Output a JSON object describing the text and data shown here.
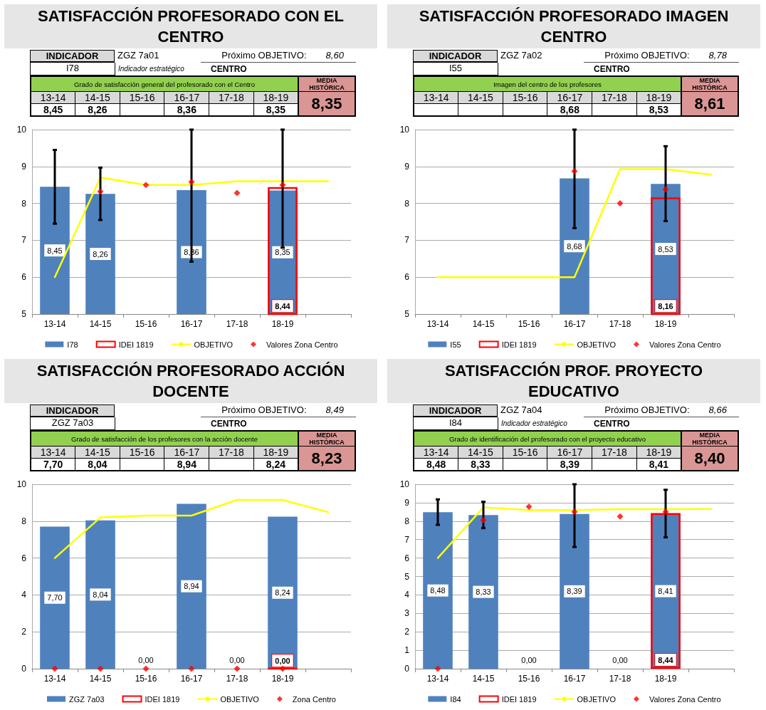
{
  "chart_data": [
    {
      "type": "bar",
      "title": "SATISFACCIÓN PROFESORADO CON EL CENTRO",
      "annotations": [
        "INDICADOR",
        "I78",
        "ZGZ 7a01",
        "Indicador estratégico",
        "Próximo OBJETIVO:",
        "8,60",
        "CENTRO",
        "Grado de satisfacción general del profesorado con el Centro",
        "MEDIA HISTÓRICA",
        "8,35",
        "8,45",
        "8,26",
        null,
        "8,36",
        null,
        "8,35"
      ],
      "categories": [
        "13-14",
        "14-15",
        "15-16",
        "16-17",
        "17-18",
        "18-19",
        null
      ],
      "ylim": [
        5,
        10
      ],
      "yticks": [
        5,
        6,
        7,
        8,
        9,
        10
      ],
      "grid": "y",
      "legend": "bottom",
      "series": [
        {
          "name": "I78",
          "color": "#4f81bd",
          "values": [
            8.45,
            8.26,
            null,
            8.36,
            null,
            8.35,
            null
          ],
          "value_labels": [
            "8,45",
            "8,26",
            null,
            "8,36",
            null,
            "8,35",
            null
          ],
          "errors": [
            [
              7.45,
              9.45
            ],
            [
              7.55,
              8.97
            ],
            null,
            [
              6.42,
              10
            ],
            null,
            [
              6.8,
              10
            ],
            null
          ]
        },
        {
          "name": "IDEI 1819",
          "color": "#ff0000",
          "values": [
            null,
            null,
            null,
            null,
            null,
            8.44,
            null
          ],
          "value_labels": [
            null,
            null,
            null,
            null,
            null,
            "8,44",
            null
          ]
        },
        {
          "name": "OBJETIVO",
          "type": "line",
          "color": "#ffff00",
          "marker": "none",
          "line_style": "solid",
          "values": [
            6.0,
            8.7,
            8.5,
            8.5,
            8.6,
            8.6,
            8.6
          ]
        },
        {
          "name": "Valores Zona Centro",
          "type": "scatter",
          "color": "#ff0000",
          "marker": "diamond",
          "values": [
            null,
            8.32,
            8.5,
            8.58,
            8.28,
            8.5,
            null
          ]
        }
      ]
    },
    {
      "type": "bar",
      "title": "SATISFACCIÓN PROFESORADO IMAGEN CENTRO",
      "annotations": [
        "INDICADOR",
        "I55",
        "ZGZ 7a02",
        null,
        "Próximo OBJETIVO:",
        "8,78",
        "CENTRO",
        "Imagen del centro de los profesores",
        "MEDIA HISTÓRICA",
        "8,61",
        null,
        null,
        null,
        "8,68",
        null,
        "8,53"
      ],
      "categories": [
        "13-14",
        "14-15",
        "15-16",
        "16-17",
        "17-18",
        "18-19",
        null
      ],
      "ylim": [
        5,
        10
      ],
      "yticks": [
        5,
        6,
        7,
        8,
        9,
        10
      ],
      "grid": "y",
      "legend": "bottom",
      "series": [
        {
          "name": "I55",
          "color": "#4f81bd",
          "values": [
            null,
            null,
            null,
            8.68,
            null,
            8.53,
            null
          ],
          "value_labels": [
            null,
            null,
            null,
            "8,68",
            null,
            "8,53",
            null
          ],
          "errors": [
            null,
            null,
            null,
            [
              7.33,
              10
            ],
            null,
            [
              7.52,
              9.55
            ],
            null
          ]
        },
        {
          "name": "IDEI 1819",
          "color": "#ff0000",
          "values": [
            null,
            null,
            null,
            null,
            null,
            8.16,
            null
          ],
          "value_labels": [
            null,
            null,
            null,
            null,
            null,
            "8,16",
            null
          ]
        },
        {
          "name": "OBJETIVO",
          "type": "line",
          "color": "#ffff00",
          "marker": "none",
          "line_style": "solid",
          "values": [
            6.0,
            6.0,
            6.0,
            6.0,
            8.93,
            8.93,
            8.78
          ]
        },
        {
          "name": "Valores Zona Centro",
          "type": "scatter",
          "color": "#ff0000",
          "marker": "diamond",
          "values": [
            null,
            null,
            null,
            8.87,
            8.0,
            8.38,
            null
          ]
        }
      ]
    },
    {
      "type": "bar",
      "title": "SATISFACCIÓN PROFESORADO ACCIÓN DOCENTE",
      "annotations": [
        "INDICADOR",
        "ZGZ 7a03",
        null,
        null,
        "Próximo OBJETIVO:",
        "8,49",
        "CENTRO",
        "Grado de satisfacción de los profesores con la acción docente",
        "MEDIA HISTÓRICA",
        "8,23",
        "7,70",
        "8,04",
        null,
        "8,94",
        null,
        "8,24"
      ],
      "categories": [
        "13-14",
        "14-15",
        "15-16",
        "16-17",
        "17-18",
        "18-19",
        null
      ],
      "ylim": [
        0,
        10
      ],
      "yticks": [
        0,
        2,
        4,
        6,
        8,
        10
      ],
      "grid": "y",
      "legend": "bottom",
      "series": [
        {
          "name": "ZGZ 7a03",
          "color": "#4f81bd",
          "values": [
            7.7,
            8.04,
            0,
            8.94,
            0,
            8.24,
            null
          ],
          "value_labels": [
            "7,70",
            "8,04",
            "0,00",
            "8,94",
            "0,00",
            "8,24",
            null
          ]
        },
        {
          "name": "IDEI 1819",
          "color": "#ff0000",
          "values": [
            null,
            null,
            null,
            null,
            null,
            0,
            null
          ],
          "value_labels": [
            null,
            null,
            null,
            null,
            null,
            "0,00",
            null
          ]
        },
        {
          "name": "OBJETIVO",
          "type": "line",
          "color": "#ffff00",
          "marker": "none",
          "line_style": "solid",
          "values": [
            6.0,
            8.2,
            8.3,
            8.3,
            9.15,
            9.15,
            8.49
          ]
        },
        {
          "name": "Zona Centro",
          "type": "scatter",
          "color": "#ff0000",
          "marker": "diamond",
          "values": [
            0,
            0,
            0,
            0,
            0,
            0,
            null
          ]
        }
      ]
    },
    {
      "type": "bar",
      "title": "SATISFACCIÓN PROF. PROYECTO EDUCATIVO",
      "annotations": [
        "INDICADOR",
        "I84",
        "ZGZ 7a04",
        "Indicador estratégico",
        "Próximo OBJETIVO:",
        "8,66",
        "CENTRO",
        "Grado de identificación del profesorado con el proyecto educativo",
        "MEDIA HISTÓRICA",
        "8,40",
        "8,48",
        "8,33",
        null,
        "8,39",
        null,
        "8,41"
      ],
      "categories": [
        "13-14",
        "14-15",
        "15-16",
        "16-17",
        "17-18",
        "18-19",
        null
      ],
      "ylim": [
        0,
        10
      ],
      "yticks": [
        0,
        1,
        2,
        3,
        4,
        5,
        6,
        7,
        8,
        9,
        10
      ],
      "grid": "y",
      "legend": "bottom",
      "series": [
        {
          "name": "I84",
          "color": "#4f81bd",
          "values": [
            8.48,
            8.33,
            0,
            8.39,
            0,
            8.41,
            null
          ],
          "value_labels": [
            "8,48",
            "8,33",
            "0,00",
            "8,39",
            "0,00",
            "8,41",
            null
          ],
          "errors": [
            [
              7.8,
              9.18
            ],
            [
              7.62,
              9.05
            ],
            null,
            [
              6.6,
              10
            ],
            null,
            [
              7.12,
              9.7
            ],
            null
          ]
        },
        {
          "name": "IDEI 1819",
          "color": "#ff0000",
          "values": [
            null,
            null,
            null,
            null,
            null,
            8.44,
            null
          ],
          "value_labels": [
            null,
            null,
            null,
            null,
            null,
            "8,44",
            null
          ]
        },
        {
          "name": "OBJETIVO",
          "type": "line",
          "color": "#ffff00",
          "marker": "none",
          "line_style": "solid",
          "values": [
            6.0,
            8.75,
            8.6,
            8.6,
            8.65,
            8.65,
            8.66
          ]
        },
        {
          "name": "Valores Zona Centro",
          "type": "scatter",
          "color": "#ff0000",
          "marker": "diamond",
          "values": [
            0,
            8.05,
            8.78,
            8.5,
            8.25,
            8.5,
            null
          ]
        }
      ]
    }
  ]
}
